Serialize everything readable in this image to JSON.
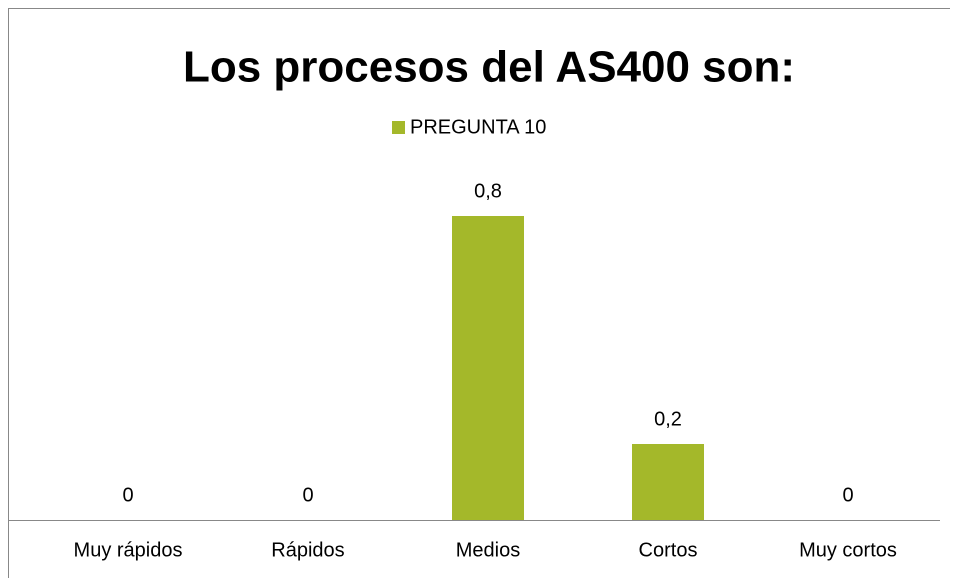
{
  "chart_data": {
    "type": "bar",
    "title": "Los procesos del AS400 son:",
    "categories": [
      "Muy rápidos",
      "Rápidos",
      "Medios",
      "Cortos",
      "Muy cortos"
    ],
    "series": [
      {
        "name": "PREGUNTA 10",
        "color": "#a4b82a",
        "values": [
          0,
          0,
          0.8,
          0.2,
          0
        ],
        "value_labels": [
          "0",
          "0",
          "0,8",
          "0,2",
          "0"
        ]
      }
    ],
    "ylim": [
      0,
      1
    ],
    "legend": "top"
  }
}
